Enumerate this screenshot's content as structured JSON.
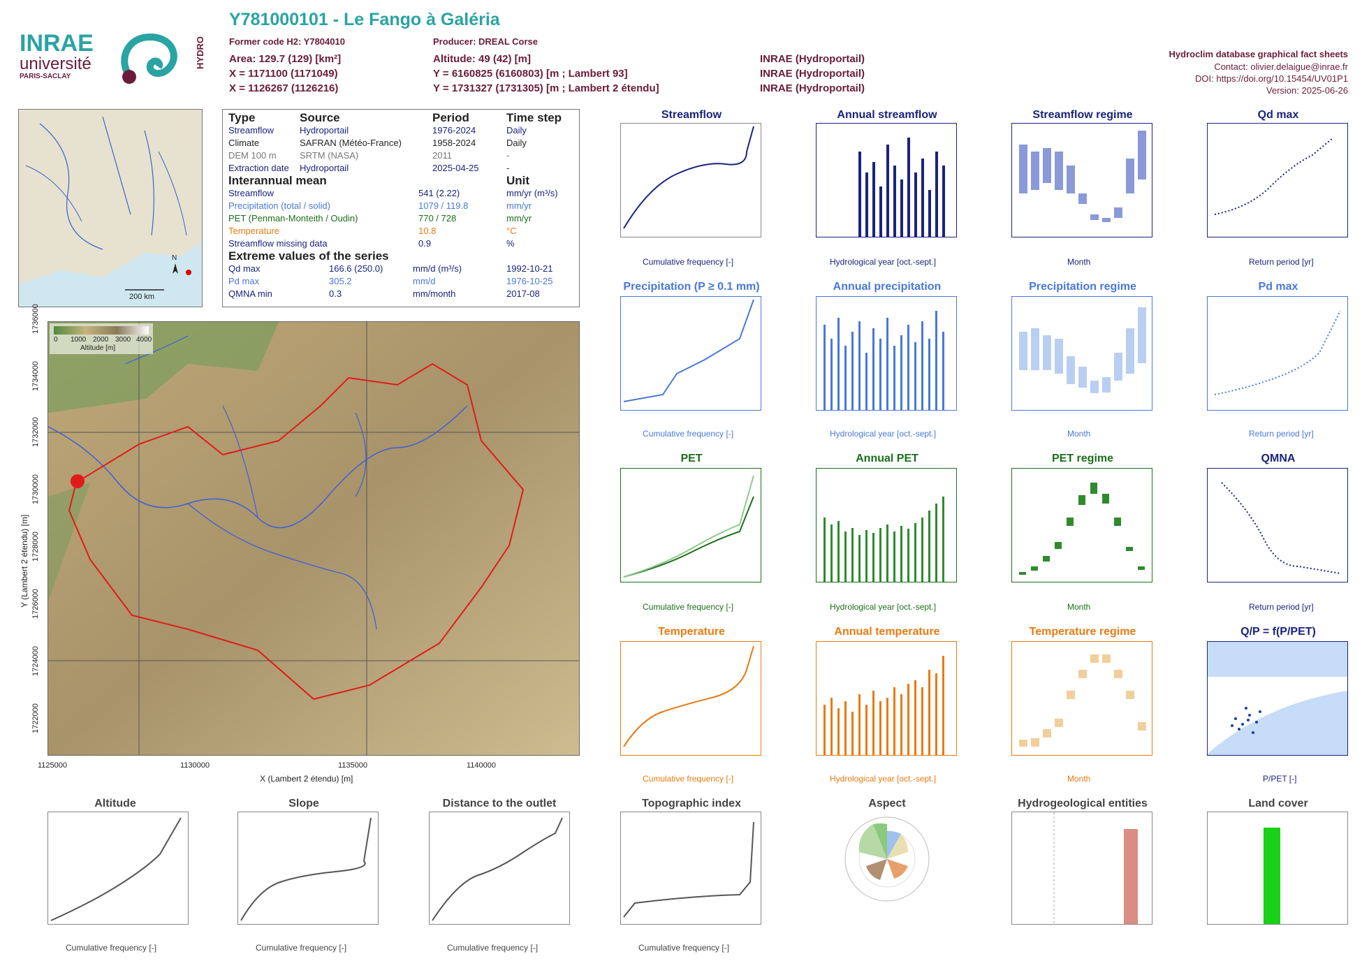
{
  "header": {
    "title": "Y781000101 - Le Fango à Galéria",
    "former_code": "Former code H2: Y7804010",
    "producer": "Producer: DREAL Corse",
    "area": "Area: 129.7 (129) [km²]",
    "altitude": "Altitude: 49 (42) [m]",
    "x93": "X = 1171100 (1171049)",
    "y93": "Y = 6160825 (6160803) [m ; Lambert 93]",
    "x2e": "X = 1126267 (1126216)",
    "y2e": "Y = 1731327 (1731305) [m ; Lambert 2 étendu]",
    "src1": "INRAE (Hydroportail)",
    "src2": "INRAE (Hydroportail)",
    "src3": "INRAE (Hydroportail)",
    "db_title": "Hydroclim database graphical fact sheets",
    "contact": "Contact: olivier.delaigue@inrae.fr",
    "doi": "DOI: https://doi.org/10.15454/UV01P1",
    "version": "Version: 2025-06-26"
  },
  "logos": {
    "inrae": "INRAE",
    "universite": "université",
    "paris_saclay": "PARIS-SACLAY",
    "hydro": "HYDRO"
  },
  "table": {
    "headers": [
      "Type",
      "Source",
      "Period",
      "Time step"
    ],
    "rows": [
      [
        "Streamflow",
        "Hydroportail",
        "1976-2024",
        "Daily"
      ],
      [
        "Climate",
        "SAFRAN (Météo-France)",
        "1958-2024",
        "Daily"
      ],
      [
        "DEM 100 m",
        "SRTM (NASA)",
        "2011",
        "-"
      ],
      [
        "Extraction date",
        "Hydroportail",
        "2025-04-25",
        "-"
      ]
    ],
    "interannual_title": "Interannual mean",
    "unit_title": "Unit",
    "interannual": [
      [
        "Streamflow",
        "541 (2.22)",
        "mm/yr (m³/s)"
      ],
      [
        "Precipitation (total / solid)",
        "1079 / 119.8",
        "mm/yr"
      ],
      [
        "PET (Penman-Monteith / Oudin)",
        "770 / 728",
        "mm/yr"
      ],
      [
        "Temperature",
        "10.8",
        "°C"
      ],
      [
        "Streamflow missing data",
        "0.9",
        "%"
      ]
    ],
    "extreme_title": "Extreme values of the series",
    "extremes": [
      [
        "Qd max",
        "166.6 (250.0)",
        "mm/d (m³/s)",
        "1992-10-21"
      ],
      [
        "Pd max",
        "305.2",
        "mm/d",
        "1976-10-25"
      ],
      [
        "QMNA min",
        "0.3",
        "mm/month",
        "2017-08"
      ]
    ]
  },
  "inset_map": {
    "scale": "200 km",
    "north": "N"
  },
  "map": {
    "legend_title": "Altitude [m]",
    "legend_ticks": [
      "0",
      "1000",
      "2000",
      "3000",
      "4000"
    ],
    "xlabel": "X (Lambert 2 étendu) [m]",
    "ylabel": "Y (Lambert 2 étendu) [m]",
    "xticks": [
      "1125000",
      "1130000",
      "1135000",
      "1140000"
    ],
    "yticks": [
      "1736000",
      "1734000",
      "1732000",
      "1730000",
      "1728000",
      "1726000",
      "1724000",
      "1722000"
    ]
  },
  "panels": {
    "streamflow": "Streamflow",
    "annual_streamflow": "Annual streamflow",
    "streamflow_regime": "Streamflow regime",
    "qd_max": "Qd max",
    "precipitation": "Precipitation (P ≥ 0.1 mm)",
    "annual_precipitation": "Annual precipitation",
    "precipitation_regime": "Precipitation regime",
    "pd_max": "Pd max",
    "pet": "PET",
    "annual_pet": "Annual PET",
    "pet_regime": "PET regime",
    "qmna": "QMNA",
    "temperature": "Temperature",
    "annual_temperature": "Annual temperature",
    "temperature_regime": "Temperature regime",
    "qp": "Q/P = f(P/PET)",
    "altitude": "Altitude",
    "slope": "Slope",
    "distance": "Distance to the outlet",
    "topo": "Topographic index",
    "aspect": "Aspect",
    "hydrogeo": "Hydrogeological entities",
    "landcover": "Land cover"
  },
  "labels": {
    "cumfreq": "Cumulative frequency [-]",
    "hydroyear": "Hydrological year [oct.-sept.]",
    "month": "Month",
    "return_period": "Return period [yr]",
    "p_pet": "P/PET [-]"
  }
}
